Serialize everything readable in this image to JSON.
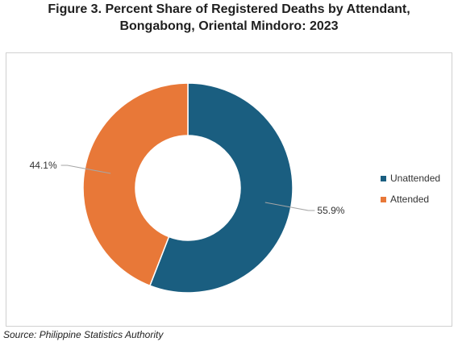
{
  "chart_data": {
    "type": "pie",
    "variant": "donut",
    "title_line1": "Figure 3. Percent Share of Registered Deaths by Attendant,",
    "title_line2": "Bongabong, Oriental Mindoro: 2023",
    "categories": [
      "Unattended",
      "Attended"
    ],
    "values": [
      55.9,
      44.1
    ],
    "labels": [
      "55.9%",
      "44.1%"
    ],
    "colors": [
      "#1a5e80",
      "#e87838"
    ],
    "legend_position": "right"
  },
  "source": "Source: Philippine Statistics Authority"
}
